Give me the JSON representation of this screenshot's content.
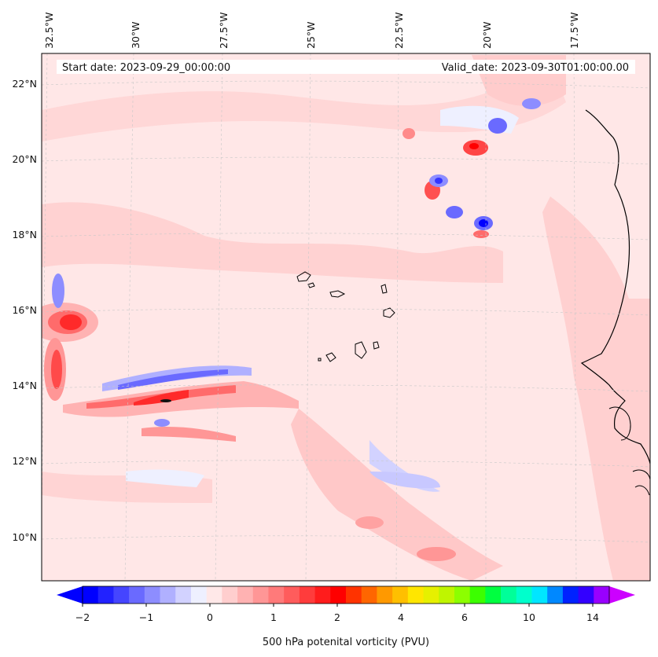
{
  "map": {
    "start_text": "Start date: 2023-09-29_00:00:00",
    "valid_text": "Valid_date: 2023-09-30T01:00:00.00",
    "lon_labels": [
      "32.5°W",
      "30°W",
      "27.5°W",
      "25°W",
      "22.5°W",
      "20°W",
      "17.5°W"
    ],
    "lat_labels": [
      "22°N",
      "20°N",
      "18°N",
      "16°N",
      "14°N",
      "12°N",
      "10°N"
    ],
    "background_color": "#ffe7e7"
  },
  "colorbar": {
    "label": "500 hPa potenital vorticity (PVU)",
    "tick_labels": [
      "−2",
      "−1",
      "0",
      "1",
      "2",
      "4",
      "6",
      "10",
      "14"
    ],
    "colors": [
      "#0000ff",
      "#2222ff",
      "#4545ff",
      "#6a6aff",
      "#8d8dff",
      "#b0b0ff",
      "#d2d2ff",
      "#eef0ff",
      "#ffe8e8",
      "#ffcece",
      "#ffb2b2",
      "#ff9696",
      "#ff7a7a",
      "#ff5c5c",
      "#ff3c3c",
      "#ff1c1c",
      "#ff0000",
      "#ff3300",
      "#ff6600",
      "#ff9900",
      "#ffbf00",
      "#ffe600",
      "#e6f000",
      "#bff500",
      "#8cff00",
      "#3cff00",
      "#00ff40",
      "#00ff99",
      "#00ffcc",
      "#00e6ff",
      "#0088ff",
      "#0022ff",
      "#3300ff",
      "#9900ff"
    ],
    "under_color": "#0000ff",
    "over_color": "#cc00ff"
  }
}
